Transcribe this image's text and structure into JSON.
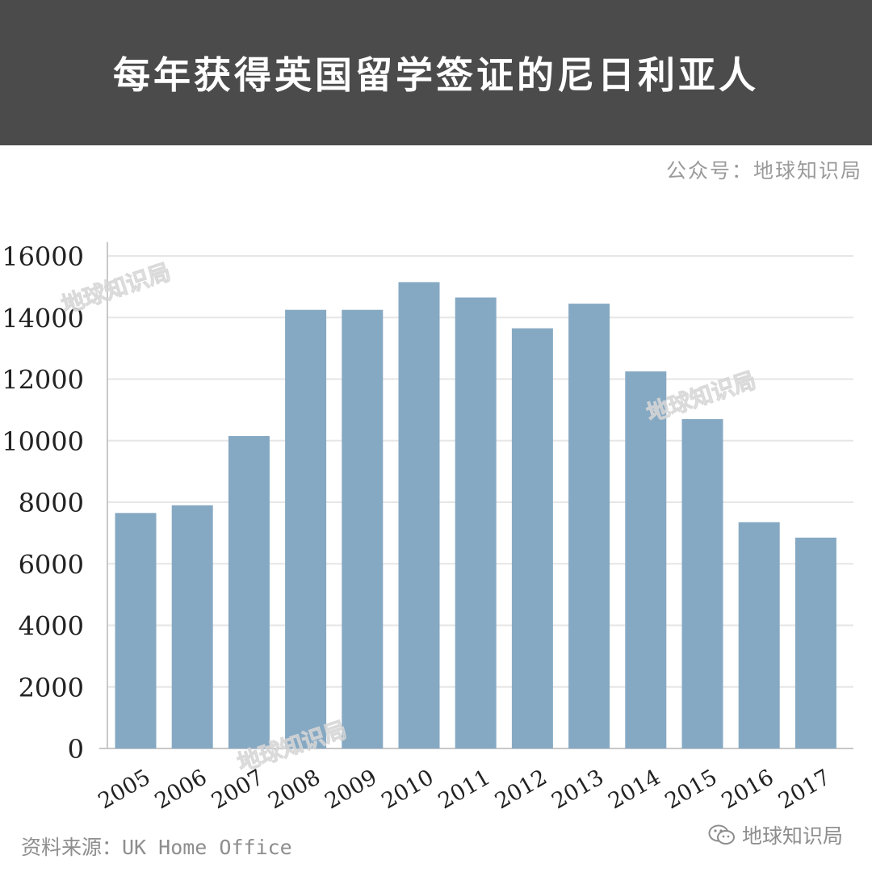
{
  "header": {
    "title": "每年获得英国留学签证的尼日利亚人"
  },
  "account_label": "公众号：地球知识局",
  "source_label": "资料来源：UK Home Office",
  "brand_label": "地球知识局",
  "watermark_text": "地球知识局",
  "colors": {
    "header_bg": "#4b4b4b",
    "bar": "#86a9c3",
    "grid": "#e6e6e6",
    "axis": "#c8c8c8"
  },
  "chart_data": {
    "type": "bar",
    "title": "每年获得英国留学签证的尼日利亚人",
    "categories": [
      "2005",
      "2006",
      "2007",
      "2008",
      "2009",
      "2010",
      "2011",
      "2012",
      "2013",
      "2014",
      "2015",
      "2016",
      "2017"
    ],
    "values": [
      7650,
      7900,
      10150,
      14250,
      14250,
      15150,
      14650,
      13650,
      14450,
      12250,
      10700,
      7350,
      6850
    ],
    "yticks": [
      0,
      2000,
      4000,
      6000,
      8000,
      10000,
      12000,
      14000,
      16000
    ],
    "ylim": [
      0,
      16000
    ],
    "xlabel": "",
    "ylabel": "",
    "grid": true
  }
}
